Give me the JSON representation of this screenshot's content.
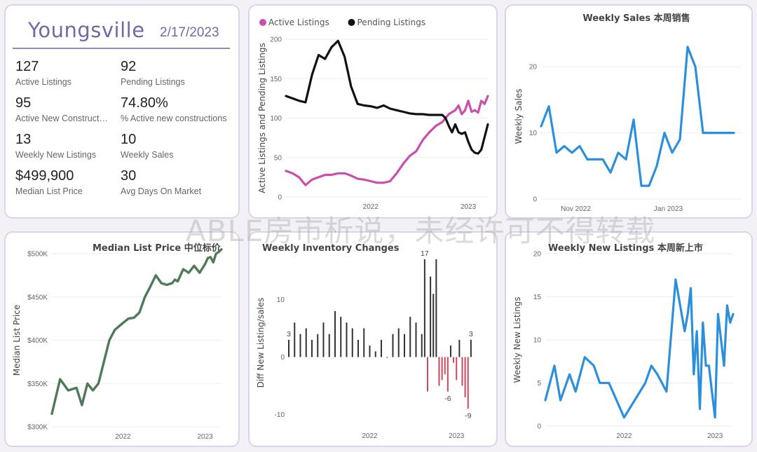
{
  "kpi": {
    "city": "Youngsville",
    "date": "2/17/2023",
    "items": [
      {
        "value": "127",
        "label": "Active Listings"
      },
      {
        "value": "92",
        "label": "Pending Listings"
      },
      {
        "value": "95",
        "label": "Active New Constructi..."
      },
      {
        "value": "74.80%",
        "label": "% Active new constructions"
      },
      {
        "value": "13",
        "label": "Weekly New Listings"
      },
      {
        "value": "10",
        "label": "Weekly Sales"
      },
      {
        "value": "$499,900",
        "label": "Median List Price"
      },
      {
        "value": "30",
        "label": "Avg Days On Market"
      }
    ]
  },
  "watermark": "ABLE房市析说，未经许可不得转载",
  "colors": {
    "pink": "#c94fae",
    "black": "#111111",
    "blue": "#2b8fdc",
    "green": "#4e7a58",
    "red": "#c94a5c",
    "bar": "#333333"
  },
  "chart_data": [
    {
      "id": "active",
      "type": "line",
      "title": "",
      "xlabel": "",
      "ylabel": "Active Listings and Pending Listings",
      "ylim": [
        0,
        200
      ],
      "yticks": [
        0,
        50,
        100,
        150,
        200
      ],
      "xlim": [
        0,
        62
      ],
      "xticks": [
        {
          "x": 26,
          "label": "2022"
        },
        {
          "x": 56,
          "label": "2023"
        }
      ],
      "series": [
        {
          "name": "Active Listings",
          "color": "#c94fae",
          "x": [
            0,
            2,
            4,
            6,
            8,
            10,
            12,
            14,
            16,
            18,
            20,
            22,
            24,
            26,
            28,
            30,
            32,
            34,
            36,
            38,
            40,
            42,
            44,
            46,
            48,
            50,
            52,
            53,
            54,
            55,
            56,
            57,
            58,
            59,
            60,
            61,
            62
          ],
          "values": [
            33,
            30,
            25,
            15,
            22,
            25,
            28,
            28,
            30,
            30,
            27,
            23,
            22,
            20,
            18,
            18,
            20,
            30,
            42,
            52,
            58,
            72,
            82,
            90,
            95,
            105,
            110,
            116,
            105,
            110,
            122,
            108,
            110,
            107,
            122,
            118,
            128
          ]
        },
        {
          "name": "Pending Listings",
          "color": "#111111",
          "x": [
            0,
            2,
            4,
            6,
            8,
            10,
            12,
            14,
            16,
            18,
            20,
            22,
            24,
            26,
            28,
            30,
            32,
            34,
            36,
            38,
            40,
            42,
            44,
            46,
            48,
            49,
            50,
            51,
            52,
            53,
            54,
            55,
            56,
            57,
            58,
            59,
            60,
            61,
            62
          ],
          "values": [
            128,
            125,
            122,
            120,
            155,
            180,
            175,
            190,
            198,
            178,
            140,
            118,
            116,
            115,
            113,
            116,
            112,
            110,
            108,
            106,
            105,
            105,
            104,
            104,
            104,
            100,
            90,
            82,
            92,
            82,
            80,
            82,
            70,
            60,
            56,
            55,
            60,
            76,
            92
          ]
        }
      ]
    },
    {
      "id": "weekly-sales",
      "type": "line",
      "title": "Weekly Sales 本周销售",
      "xlabel": "",
      "ylabel": "Weekly Sales",
      "ylim": [
        0,
        25
      ],
      "yticks": [
        0,
        10,
        20
      ],
      "xlim": [
        0,
        26
      ],
      "xticks": [
        {
          "x": 4.5,
          "label": "Nov 2022"
        },
        {
          "x": 16.5,
          "label": "Jan 2023"
        }
      ],
      "series": [
        {
          "name": "Weekly Sales",
          "color": "#2b8fdc",
          "x": [
            0,
            1,
            2,
            3,
            4,
            5,
            6,
            7,
            8,
            9,
            10,
            11,
            12,
            13,
            14,
            15,
            16,
            17,
            18,
            19,
            20,
            21,
            22,
            23,
            24,
            25
          ],
          "values": [
            11,
            14,
            7,
            8,
            7,
            8,
            6,
            6,
            6,
            4,
            7,
            6,
            12,
            2,
            2,
            5,
            10,
            7,
            9,
            23,
            20,
            10,
            10,
            10,
            10,
            10
          ]
        }
      ]
    },
    {
      "id": "median",
      "type": "line",
      "title": "Median List Price 中位标价",
      "xlabel": "",
      "ylabel": "Median List Price",
      "ylim": [
        300000,
        500000
      ],
      "yticks": [
        300000,
        350000,
        400000,
        450000,
        500000
      ],
      "yticklabels": [
        "$300K",
        "$350K",
        "$400K",
        "$450K",
        "$500K"
      ],
      "xlim": [
        0,
        62
      ],
      "xticks": [
        {
          "x": 26,
          "label": "2022"
        },
        {
          "x": 56,
          "label": "2023"
        }
      ],
      "series": [
        {
          "name": "Median List Price",
          "color": "#4e7a58",
          "x": [
            0,
            3,
            6,
            9,
            11,
            13,
            15,
            17,
            19,
            21,
            23,
            26,
            28,
            30,
            32,
            34,
            36,
            38,
            40,
            42,
            44,
            45,
            46,
            48,
            50,
            52,
            54,
            56,
            57,
            58,
            59,
            60,
            61,
            62
          ],
          "values": [
            315000,
            355000,
            342000,
            345000,
            325000,
            350000,
            342000,
            350000,
            375000,
            400000,
            412000,
            420000,
            425000,
            426000,
            432000,
            450000,
            462000,
            475000,
            466000,
            464000,
            466000,
            470000,
            468000,
            482000,
            478000,
            486000,
            478000,
            488000,
            495000,
            496000,
            490000,
            500000,
            502000,
            505000
          ]
        }
      ]
    },
    {
      "id": "inventory",
      "type": "bar",
      "title": "Weekly Inventory Changes",
      "xlabel": "",
      "ylabel": "Diff New Listing/sales",
      "ylim": [
        -12,
        17
      ],
      "yticks": [
        -10,
        0,
        10
      ],
      "xlim": [
        0,
        64
      ],
      "xticks": [
        {
          "x": 28,
          "label": "2022"
        },
        {
          "x": 58,
          "label": "2023"
        }
      ],
      "x": [
        0,
        2,
        4,
        6,
        8,
        10,
        12,
        14,
        16,
        18,
        20,
        22,
        24,
        26,
        28,
        30,
        32,
        34,
        36,
        38,
        40,
        42,
        44,
        46,
        47,
        48,
        49,
        50,
        51,
        52,
        53,
        54,
        55,
        56,
        57,
        58,
        59,
        60,
        61,
        62,
        63
      ],
      "values": [
        3,
        6,
        4,
        5,
        3,
        4,
        6,
        4,
        8,
        7,
        6,
        5,
        3,
        5,
        2,
        1,
        3,
        0,
        4,
        5,
        4,
        7,
        6,
        4,
        17,
        -6,
        14,
        11,
        17,
        -5,
        -4,
        -3,
        -6,
        2,
        -1,
        -4,
        3,
        -5,
        -7,
        -9,
        3
      ],
      "data_labels": [
        {
          "x": 0,
          "value": 3
        },
        {
          "x": 47,
          "value": 17
        },
        {
          "x": 55,
          "value": -6
        },
        {
          "x": 62,
          "value": -9
        },
        {
          "x": 63,
          "value": 3
        }
      ]
    },
    {
      "id": "new-listings",
      "type": "line",
      "title": "Weekly New Listings 本周新上市",
      "xlabel": "",
      "ylabel": "Weekly New Listings",
      "ylim": [
        0,
        20
      ],
      "yticks": [
        0,
        5,
        10,
        15,
        20
      ],
      "xlim": [
        0,
        62
      ],
      "xticks": [
        {
          "x": 26,
          "label": "2022"
        },
        {
          "x": 56,
          "label": "2023"
        }
      ],
      "series": [
        {
          "name": "Weekly New Listings",
          "color": "#2b8fdc",
          "x": [
            0,
            3,
            5,
            8,
            10,
            13,
            16,
            18,
            21,
            26,
            33,
            35,
            37,
            40,
            43,
            44,
            45,
            46,
            47,
            48,
            49,
            50,
            51,
            52,
            53,
            54,
            55,
            56,
            57,
            58,
            59,
            60,
            61,
            62
          ],
          "values": [
            3,
            7,
            3,
            6,
            4,
            8,
            7,
            5,
            5,
            1,
            5,
            7,
            6,
            4,
            17,
            15,
            13,
            11,
            13,
            16,
            6,
            11,
            2,
            12,
            7,
            7,
            4,
            1,
            13,
            10,
            7,
            14,
            12,
            13
          ]
        }
      ]
    }
  ]
}
